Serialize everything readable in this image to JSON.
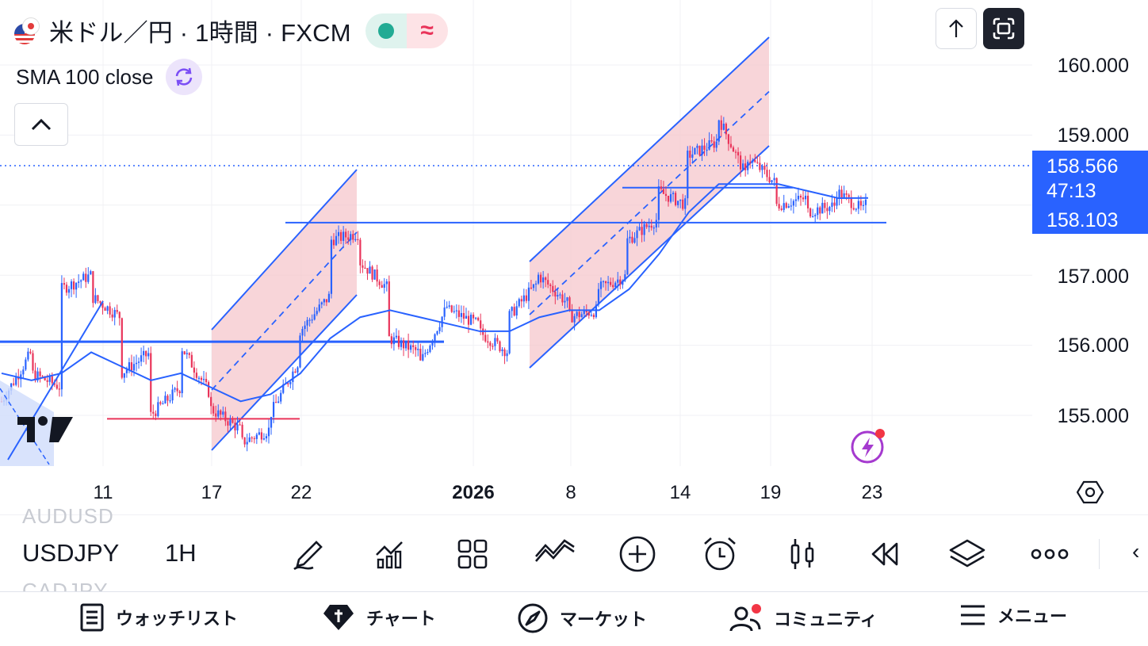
{
  "header": {
    "title": "米ドル／円 · 1時間 · FXCM",
    "status_icon": "green-dot",
    "alt_icon": "wave-approx"
  },
  "indicator": {
    "label": "SMA 100 close"
  },
  "chart_data": {
    "type": "candlestick",
    "symbol": "USDJPY",
    "interval": "1H",
    "yticks": [
      "160.000",
      "159.000",
      "157.000",
      "156.000",
      "155.000"
    ],
    "ylim": [
      154.3,
      160.5
    ],
    "xticks": [
      {
        "label": "11",
        "bold": false
      },
      {
        "label": "17",
        "bold": false
      },
      {
        "label": "22",
        "bold": false
      },
      {
        "label": "2026",
        "bold": true
      },
      {
        "label": "8",
        "bold": false
      },
      {
        "label": "14",
        "bold": false
      },
      {
        "label": "19",
        "bold": false
      },
      {
        "label": "23",
        "bold": false
      }
    ],
    "current_price": "158.566",
    "countdown": "47:13",
    "sma_value": "158.103",
    "price_path": [
      [
        155.2,
        155.9
      ],
      [
        155.6,
        155.4
      ],
      [
        156.8,
        157.0
      ],
      [
        156.7,
        156.4
      ],
      [
        155.6,
        155.9
      ],
      [
        155.0,
        155.4
      ],
      [
        156.0,
        155.3
      ],
      [
        155.1,
        154.8
      ],
      [
        154.6,
        154.8
      ],
      [
        155.0,
        155.8
      ],
      [
        156.2,
        156.7
      ],
      [
        157.5,
        157.6
      ],
      [
        157.2,
        156.8
      ],
      [
        156.1,
        155.9
      ],
      [
        155.7,
        156.6
      ],
      [
        156.5,
        156.3
      ],
      [
        156.2,
        155.9
      ],
      [
        156.4,
        156.9
      ],
      [
        157.0,
        156.6
      ],
      [
        156.4,
        156.5
      ],
      [
        156.8,
        157.0
      ],
      [
        157.5,
        157.8
      ],
      [
        158.2,
        158.0
      ],
      [
        158.7,
        158.9
      ],
      [
        159.3,
        158.4
      ],
      [
        158.7,
        158.3
      ],
      [
        158.0,
        158.1
      ],
      [
        157.9,
        158.0
      ],
      [
        158.2,
        157.9
      ],
      [
        158.0,
        158.566
      ]
    ],
    "sma_path": [
      155.6,
      155.5,
      155.6,
      155.9,
      155.7,
      155.5,
      155.6,
      155.4,
      155.2,
      155.3,
      155.6,
      156.1,
      156.4,
      156.5,
      156.4,
      156.3,
      156.2,
      156.2,
      156.4,
      156.5,
      156.5,
      156.8,
      157.3,
      157.9,
      158.3,
      158.3,
      158.3,
      158.2,
      158.1,
      158.103
    ],
    "horizontal_lines": [
      {
        "price": 156.05,
        "color": "#2962ff",
        "x_start": 0,
        "x_end": 560
      },
      {
        "price": 154.95,
        "color": "#e9345a",
        "x_start": 135,
        "x_end": 378
      },
      {
        "price": 157.75,
        "color": "#2962ff",
        "x_start": 360,
        "x_end": 1118
      },
      {
        "price": 158.25,
        "color": "#2962ff",
        "x_start": 785,
        "x_end": 1000
      }
    ],
    "grid": true
  },
  "toolbar": {
    "symbol": "USDJPY",
    "interval": "1H",
    "ghost_top": "AUDUSD",
    "ghost_bottom": "CADJPY",
    "more_glyph": "‹",
    "icons": [
      "draw-icon",
      "indicators-icon",
      "layouts-icon",
      "templates-icon",
      "add-icon",
      "alert-icon",
      "candles-icon",
      "replay-icon",
      "layers-icon",
      "more-icon"
    ]
  },
  "nav": {
    "watchlist": "ウォッチリスト",
    "chart": "チャート",
    "markets": "マーケット",
    "community": "コミュニティ",
    "menu": "メニュー"
  },
  "colors": {
    "accent": "#2962ff",
    "up": "#2962ff",
    "down": "#e9345a",
    "channel_fill": "#f6c7cc"
  }
}
